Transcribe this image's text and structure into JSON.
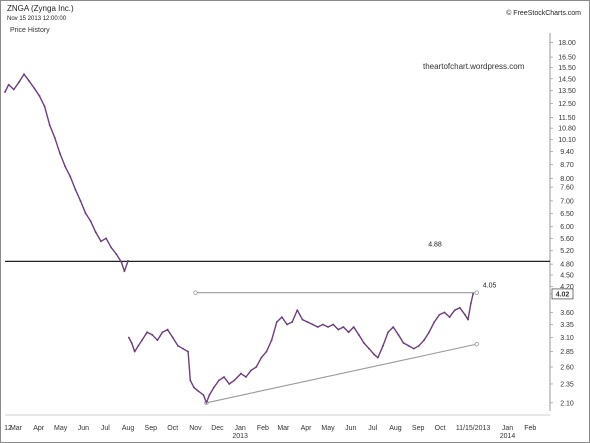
{
  "header": {
    "symbol_title": "ZNGA (Zynga Inc.)",
    "datestamp": "Nov 15 2013 12:00:00",
    "panel_label": "Price History",
    "source": "© FreeStockCharts.com",
    "watermark": "theartofchart.wordpress.com"
  },
  "colors": {
    "price": "#6b3e7e",
    "support_line": "#222222",
    "trendline": "#999999",
    "background": "#ffffff"
  },
  "chart_data": {
    "type": "line",
    "title": "ZNGA (Zynga Inc.)",
    "xlabel": "",
    "ylabel": "",
    "y_scale": "log",
    "ylim": [
      2.0,
      18.6
    ],
    "xlim": [
      "2012-02-15",
      "2014-02-28"
    ],
    "y_ticks": [
      18.0,
      16.5,
      15.5,
      14.5,
      13.5,
      12.5,
      11.5,
      10.8,
      10.1,
      9.4,
      8.7,
      8.0,
      7.6,
      7.0,
      6.5,
      6.0,
      5.6,
      5.2,
      4.8,
      4.5,
      4.2,
      4.02,
      3.6,
      3.35,
      3.1,
      2.85,
      2.6,
      2.35,
      2.1
    ],
    "x_ticks": [
      {
        "date": "2012-02-01",
        "label": "12"
      },
      {
        "date": "2012-03-01",
        "label": "Mar"
      },
      {
        "date": "2012-04-01",
        "label": "Apr"
      },
      {
        "date": "2012-05-01",
        "label": "May"
      },
      {
        "date": "2012-06-01",
        "label": "Jun"
      },
      {
        "date": "2012-07-01",
        "label": "Jul"
      },
      {
        "date": "2012-08-01",
        "label": "Aug"
      },
      {
        "date": "2012-09-01",
        "label": "Sep"
      },
      {
        "date": "2012-10-01",
        "label": "Oct"
      },
      {
        "date": "2012-11-01",
        "label": "Nov"
      },
      {
        "date": "2012-12-01",
        "label": "Dec"
      },
      {
        "date": "2013-01-01",
        "label": "Jan"
      },
      {
        "date": "2013-02-01",
        "label": "Feb"
      },
      {
        "date": "2013-03-01",
        "label": "Mar"
      },
      {
        "date": "2013-04-01",
        "label": "Apr"
      },
      {
        "date": "2013-05-01",
        "label": "May"
      },
      {
        "date": "2013-06-01",
        "label": "Jun"
      },
      {
        "date": "2013-07-01",
        "label": "Jul"
      },
      {
        "date": "2013-08-01",
        "label": "Aug"
      },
      {
        "date": "2013-09-01",
        "label": "Sep"
      },
      {
        "date": "2013-10-01",
        "label": "Oct"
      },
      {
        "date": "2013-11-15",
        "label": "11/15/2013"
      },
      {
        "date": "2014-01-01",
        "label": "Jan"
      },
      {
        "date": "2014-02-01",
        "label": "Feb"
      }
    ],
    "year_labels": [
      {
        "date": "2013-01-01",
        "label": "2013"
      },
      {
        "date": "2014-01-01",
        "label": "2014"
      }
    ],
    "series": [
      {
        "values": [
          [
            "2012-02-15",
            13.4
          ],
          [
            "2012-02-20",
            14.0
          ],
          [
            "2012-02-27",
            13.6
          ],
          [
            "2012-03-05",
            14.2
          ],
          [
            "2012-03-12",
            14.9
          ],
          [
            "2012-03-19",
            14.3
          ],
          [
            "2012-03-26",
            13.7
          ],
          [
            "2012-04-02",
            13.1
          ],
          [
            "2012-04-09",
            12.3
          ],
          [
            "2012-04-16",
            11.0
          ],
          [
            "2012-04-23",
            10.2
          ],
          [
            "2012-04-30",
            9.3
          ],
          [
            "2012-05-07",
            8.6
          ],
          [
            "2012-05-14",
            8.1
          ],
          [
            "2012-05-21",
            7.5
          ],
          [
            "2012-05-28",
            7.0
          ],
          [
            "2012-06-04",
            6.5
          ],
          [
            "2012-06-11",
            6.2
          ],
          [
            "2012-06-18",
            5.8
          ],
          [
            "2012-06-25",
            5.5
          ],
          [
            "2012-07-02",
            5.6
          ],
          [
            "2012-07-09",
            5.3
          ],
          [
            "2012-07-16",
            5.1
          ],
          [
            "2012-07-23",
            4.85
          ],
          [
            "2012-07-27",
            4.6
          ],
          [
            "2012-08-01",
            4.9
          ],
          [
            "2012-08-02",
            3.1
          ],
          [
            "2012-08-06",
            3.0
          ],
          [
            "2012-08-10",
            2.85
          ],
          [
            "2012-08-15",
            2.95
          ],
          [
            "2012-08-20",
            3.05
          ],
          [
            "2012-08-27",
            3.2
          ],
          [
            "2012-09-03",
            3.15
          ],
          [
            "2012-09-10",
            3.05
          ],
          [
            "2012-09-17",
            3.2
          ],
          [
            "2012-09-24",
            3.25
          ],
          [
            "2012-10-01",
            3.1
          ],
          [
            "2012-10-08",
            2.95
          ],
          [
            "2012-10-15",
            2.9
          ],
          [
            "2012-10-22",
            2.85
          ],
          [
            "2012-10-25",
            2.4
          ],
          [
            "2012-10-30",
            2.3
          ],
          [
            "2012-11-05",
            2.25
          ],
          [
            "2012-11-12",
            2.2
          ],
          [
            "2012-11-16",
            2.1
          ],
          [
            "2012-11-20",
            2.2
          ],
          [
            "2012-11-26",
            2.3
          ],
          [
            "2012-12-03",
            2.4
          ],
          [
            "2012-12-10",
            2.45
          ],
          [
            "2012-12-17",
            2.35
          ],
          [
            "2012-12-24",
            2.4
          ],
          [
            "2013-01-02",
            2.5
          ],
          [
            "2013-01-09",
            2.45
          ],
          [
            "2013-01-16",
            2.55
          ],
          [
            "2013-01-23",
            2.6
          ],
          [
            "2013-01-30",
            2.75
          ],
          [
            "2013-02-06",
            2.85
          ],
          [
            "2013-02-13",
            3.05
          ],
          [
            "2013-02-20",
            3.4
          ],
          [
            "2013-02-27",
            3.5
          ],
          [
            "2013-03-06",
            3.35
          ],
          [
            "2013-03-13",
            3.4
          ],
          [
            "2013-03-20",
            3.65
          ],
          [
            "2013-03-27",
            3.45
          ],
          [
            "2013-04-03",
            3.4
          ],
          [
            "2013-04-10",
            3.35
          ],
          [
            "2013-04-17",
            3.3
          ],
          [
            "2013-04-24",
            3.35
          ],
          [
            "2013-05-01",
            3.3
          ],
          [
            "2013-05-08",
            3.35
          ],
          [
            "2013-05-15",
            3.25
          ],
          [
            "2013-05-22",
            3.3
          ],
          [
            "2013-05-29",
            3.2
          ],
          [
            "2013-06-05",
            3.3
          ],
          [
            "2013-06-12",
            3.15
          ],
          [
            "2013-06-19",
            3.0
          ],
          [
            "2013-06-26",
            2.9
          ],
          [
            "2013-07-03",
            2.8
          ],
          [
            "2013-07-08",
            2.75
          ],
          [
            "2013-07-15",
            2.95
          ],
          [
            "2013-07-22",
            3.2
          ],
          [
            "2013-07-29",
            3.3
          ],
          [
            "2013-08-05",
            3.15
          ],
          [
            "2013-08-12",
            3.0
          ],
          [
            "2013-08-19",
            2.95
          ],
          [
            "2013-08-26",
            2.9
          ],
          [
            "2013-09-02",
            2.95
          ],
          [
            "2013-09-09",
            3.05
          ],
          [
            "2013-09-16",
            3.2
          ],
          [
            "2013-09-23",
            3.4
          ],
          [
            "2013-09-30",
            3.55
          ],
          [
            "2013-10-07",
            3.6
          ],
          [
            "2013-10-14",
            3.5
          ],
          [
            "2013-10-21",
            3.65
          ],
          [
            "2013-10-28",
            3.7
          ],
          [
            "2013-11-04",
            3.55
          ],
          [
            "2013-11-08",
            3.45
          ],
          [
            "2013-11-12",
            3.8
          ],
          [
            "2013-11-15",
            4.02
          ]
        ]
      }
    ],
    "annotations": [
      {
        "type": "horizontal_line",
        "y": 4.88,
        "label": "4.88"
      },
      {
        "type": "trendline",
        "from": [
          "2012-11-01",
          4.05
        ],
        "to": [
          "2013-11-20",
          4.05
        ],
        "label": "4.05"
      },
      {
        "type": "trendline",
        "from": [
          "2012-11-16",
          2.1
        ],
        "to": [
          "2013-11-20",
          2.98
        ]
      },
      {
        "type": "last_price_marker",
        "y": 4.02,
        "label": "4.02"
      }
    ]
  }
}
